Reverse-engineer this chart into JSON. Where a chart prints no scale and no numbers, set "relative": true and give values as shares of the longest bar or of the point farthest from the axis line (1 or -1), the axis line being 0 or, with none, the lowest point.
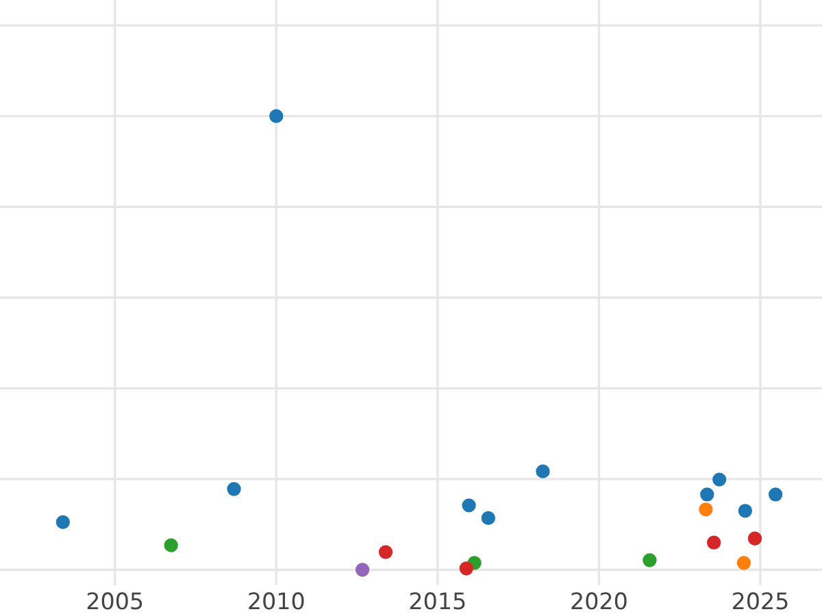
{
  "chart_data": {
    "type": "scatter",
    "relative": true,
    "grid": true,
    "marker": "circle",
    "xlim": [
      2001.44,
      2026.91
    ],
    "xticks": [
      2005,
      2010,
      2015,
      2020,
      2025
    ],
    "tick_labels": "x",
    "series": [
      {
        "color": "#1f77b4",
        "x": [
          2003.39,
          2008.69,
          2010.0,
          2015.97,
          2016.57,
          2018.26,
          2023.35,
          2023.73,
          2024.53,
          2025.47
        ],
        "values": [
          0.105,
          0.178,
          1,
          0.142,
          0.114,
          0.217,
          0.166,
          0.199,
          0.13,
          0.166
        ]
      },
      {
        "color": "#ff7f0e",
        "x": [
          2023.31,
          2024.49
        ],
        "values": [
          0.133,
          0.015
        ]
      },
      {
        "color": "#2ca02c",
        "x": [
          2006.74,
          2016.14,
          2021.57
        ],
        "values": [
          0.054,
          0.015,
          0.021
        ]
      },
      {
        "color": "#d62728",
        "x": [
          2013.39,
          2015.89,
          2023.56,
          2024.83
        ],
        "values": [
          0.039,
          0.003,
          0.06,
          0.069
        ]
      },
      {
        "color": "#9467bd",
        "x": [
          2012.67
        ],
        "values": [
          0
        ]
      }
    ]
  }
}
